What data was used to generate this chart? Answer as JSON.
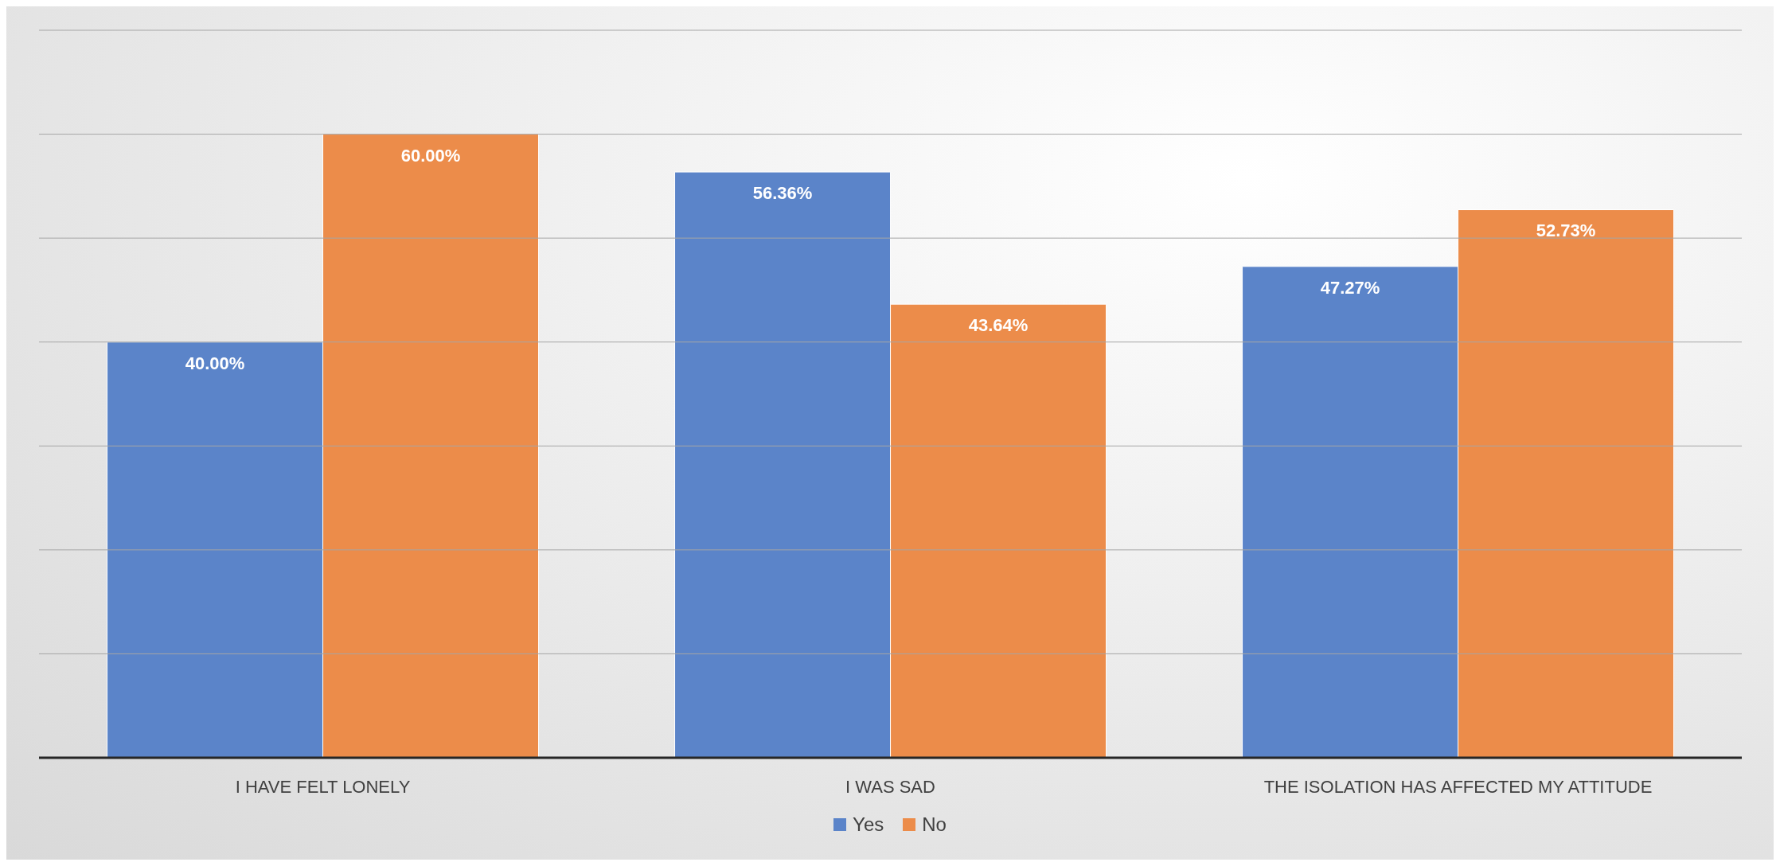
{
  "chart_data": {
    "type": "bar",
    "categories": [
      "I HAVE FELT LONELY",
      "I WAS SAD",
      "THE ISOLATION HAS AFFECTED MY ATTITUDE"
    ],
    "series": [
      {
        "name": "Yes",
        "color": "#5b84c9",
        "values": [
          40.0,
          56.36,
          47.27
        ],
        "value_labels": [
          "40.00%",
          "56.36%",
          "47.27%"
        ]
      },
      {
        "name": "No",
        "color": "#ec8c4a",
        "values": [
          60.0,
          43.64,
          52.73
        ],
        "value_labels": [
          "60.00%",
          "43.64%",
          "52.73%"
        ]
      }
    ],
    "ylim": [
      0,
      70
    ],
    "yticks": [
      0,
      10,
      20,
      30,
      40,
      50,
      60,
      70
    ],
    "tick_labels": "x",
    "grid": "y",
    "legend": "bottom"
  }
}
